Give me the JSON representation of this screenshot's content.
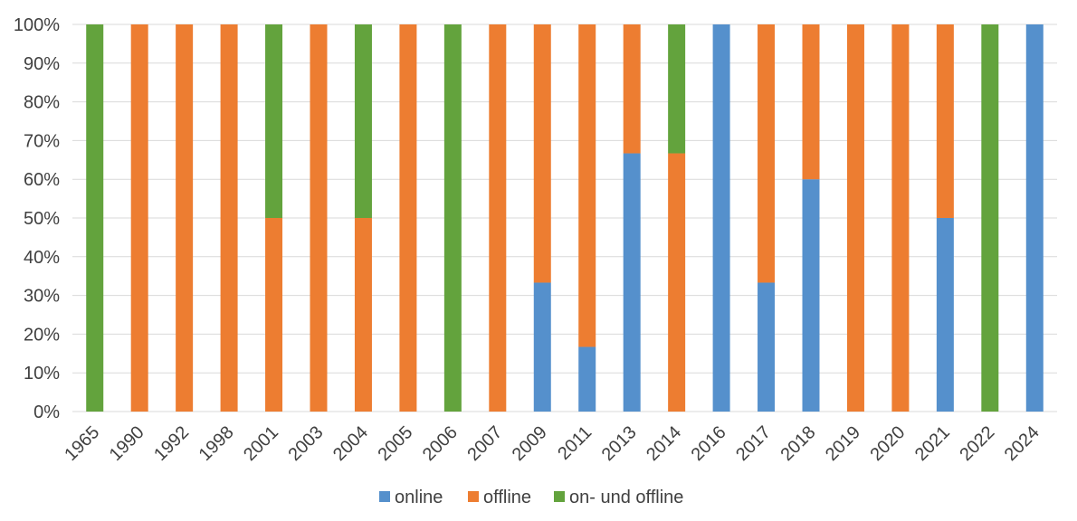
{
  "chart_data": {
    "type": "bar",
    "stacked": true,
    "categories": [
      "1965",
      "1990",
      "1992",
      "1998",
      "2001",
      "2003",
      "2004",
      "2005",
      "2006",
      "2007",
      "2009",
      "2011",
      "2013",
      "2014",
      "2016",
      "2017",
      "2018",
      "2019",
      "2020",
      "2021",
      "2022",
      "2024"
    ],
    "series": [
      {
        "name": "online",
        "color": "#5590cc",
        "values": [
          0,
          0,
          0,
          0,
          0,
          0,
          0,
          0,
          0,
          0,
          33.3,
          16.7,
          66.7,
          0,
          100,
          33.3,
          60,
          0,
          0,
          50,
          0,
          100
        ]
      },
      {
        "name": "offline",
        "color": "#ed7d31",
        "values": [
          0,
          100,
          100,
          100,
          50,
          100,
          50,
          100,
          0,
          100,
          66.7,
          83.3,
          33.3,
          66.7,
          0,
          66.7,
          40,
          100,
          100,
          50,
          0,
          0
        ]
      },
      {
        "name": "on- und offline",
        "color": "#63a33d",
        "values": [
          100,
          0,
          0,
          0,
          50,
          0,
          50,
          0,
          100,
          0,
          0,
          0,
          0,
          33.3,
          0,
          0,
          0,
          0,
          0,
          0,
          100,
          0
        ]
      }
    ],
    "ylim": [
      0,
      100
    ],
    "yticks": [
      "0%",
      "10%",
      "20%",
      "30%",
      "40%",
      "50%",
      "60%",
      "70%",
      "80%",
      "90%",
      "100%"
    ],
    "grid": true,
    "legend": "bottom"
  }
}
